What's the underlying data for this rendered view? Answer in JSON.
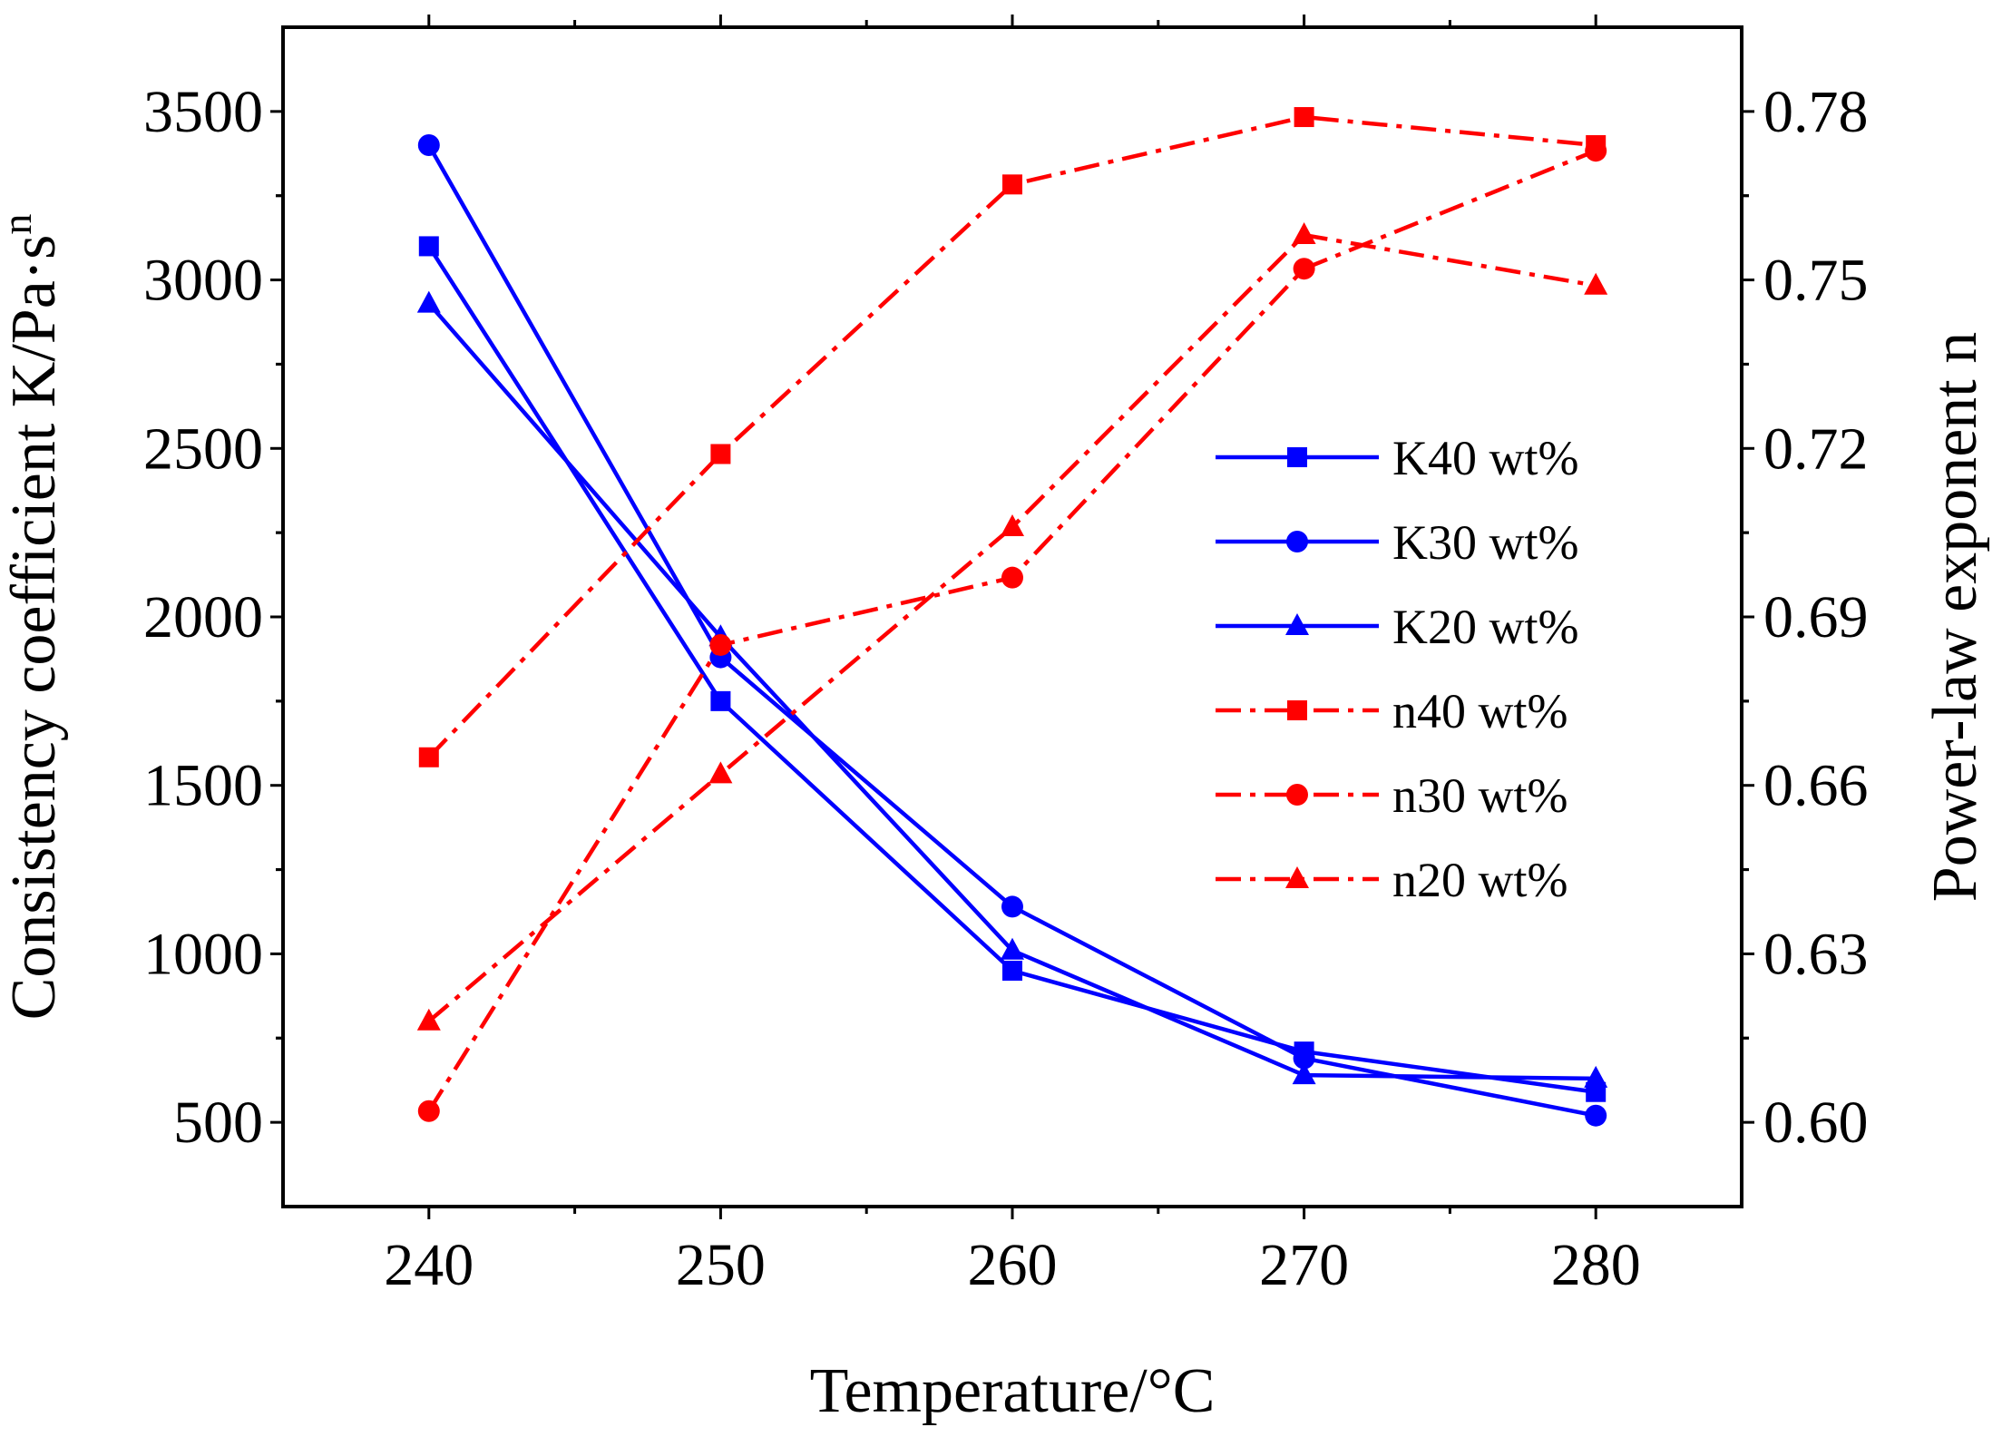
{
  "chart_data": {
    "type": "line",
    "x": [
      240,
      250,
      260,
      270,
      280
    ],
    "xlabel": "Temperature/°C",
    "xticks": [
      "240",
      "250",
      "260",
      "270",
      "280"
    ],
    "xlim": [
      235,
      285
    ],
    "ylabel_left": {
      "main": "Consistency coefficient  K/Pa·s",
      "superscript": "n"
    },
    "yticks_left": [
      "500",
      "1000",
      "1500",
      "2000",
      "2500",
      "3000",
      "3500"
    ],
    "ylim_left": [
      250,
      3750
    ],
    "ylabel_right": "Power-law exponent  n",
    "yticks_right": [
      "0.60",
      "0.63",
      "0.66",
      "0.69",
      "0.72",
      "0.75",
      "0.78"
    ],
    "ylim_right": [
      0.585,
      0.795
    ],
    "legend_position": "middle-right",
    "colors": {
      "K": "#0000ff",
      "n": "#ff0000"
    },
    "series": [
      {
        "name": "K40 wt%",
        "axis": "left",
        "marker": "square",
        "line": "solid",
        "values": [
          3100,
          1750,
          950,
          710,
          590
        ]
      },
      {
        "name": "K30 wt%",
        "axis": "left",
        "marker": "circle",
        "line": "solid",
        "values": [
          3400,
          1880,
          1140,
          690,
          520
        ]
      },
      {
        "name": "K20 wt%",
        "axis": "left",
        "marker": "triangle",
        "line": "solid",
        "values": [
          2930,
          1940,
          1010,
          640,
          630
        ]
      },
      {
        "name": "n40 wt%",
        "axis": "right",
        "marker": "square",
        "line": "dashdot",
        "values": [
          0.665,
          0.719,
          0.767,
          0.779,
          0.774
        ]
      },
      {
        "name": "n30 wt%",
        "axis": "right",
        "marker": "circle",
        "line": "dashdot",
        "values": [
          0.602,
          0.685,
          0.697,
          0.752,
          0.773
        ]
      },
      {
        "name": "n20 wt%",
        "axis": "right",
        "marker": "triangle",
        "line": "dashdot",
        "values": [
          0.618,
          0.662,
          0.706,
          0.758,
          0.749
        ]
      }
    ]
  }
}
